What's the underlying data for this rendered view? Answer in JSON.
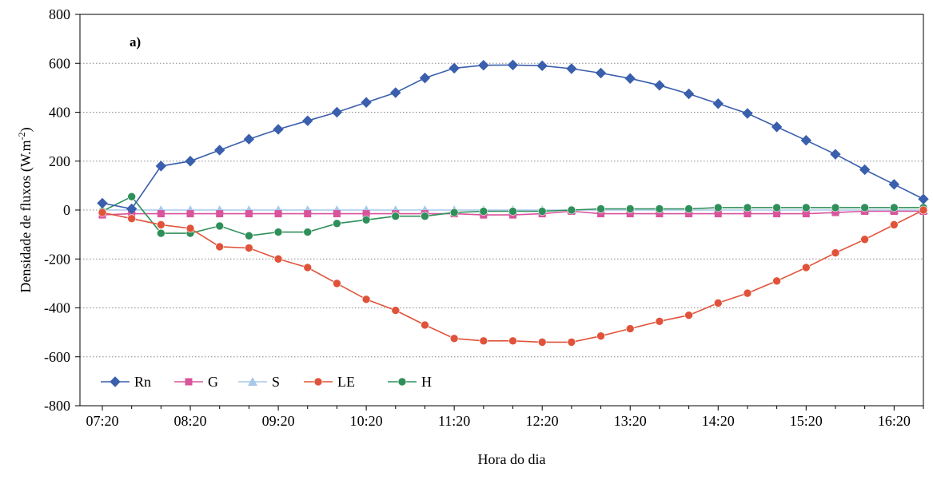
{
  "chart_data": {
    "type": "line",
    "panel_label": "a)",
    "xlabel": "Hora do dia",
    "ylabel": "Densidade de fluxos (W.m",
    "ylabel_exp": "-2",
    "ylabel_close": ")",
    "ylim": [
      -800,
      800
    ],
    "yticks": [
      -800,
      -600,
      -400,
      -200,
      0,
      200,
      400,
      600,
      800
    ],
    "x_tick_labels": [
      "07:20",
      "08:20",
      "09:20",
      "10:20",
      "11:20",
      "12:20",
      "13:20",
      "14:20",
      "15:20",
      "16:20"
    ],
    "x_tick_step_points": 3,
    "grid": "horizontal dotted",
    "legend_placement": "bottom-left",
    "x": [
      "07:20",
      "07:40",
      "08:00",
      "08:20",
      "08:40",
      "09:00",
      "09:20",
      "09:40",
      "10:00",
      "10:20",
      "10:40",
      "11:00",
      "11:20",
      "11:40",
      "12:00",
      "12:20",
      "12:40",
      "13:00",
      "13:20",
      "13:40",
      "14:00",
      "14:20",
      "14:40",
      "15:00",
      "15:20",
      "15:40",
      "16:00",
      "16:20",
      "16:40"
    ],
    "series": [
      {
        "name": "Rn",
        "color": "#3a5fad",
        "marker": "diamond",
        "values": [
          28,
          5,
          180,
          200,
          245,
          290,
          330,
          365,
          400,
          440,
          480,
          540,
          580,
          592,
          593,
          590,
          578,
          560,
          538,
          510,
          475,
          435,
          395,
          340,
          285,
          228,
          165,
          105,
          45
        ]
      },
      {
        "name": "G",
        "color": "#d9549a",
        "marker": "square",
        "values": [
          -20,
          -15,
          -15,
          -15,
          -15,
          -15,
          -15,
          -15,
          -15,
          -15,
          -15,
          -15,
          -15,
          -20,
          -20,
          -15,
          -5,
          -15,
          -15,
          -15,
          -15,
          -15,
          -15,
          -15,
          -15,
          -10,
          -5,
          -5,
          -5
        ]
      },
      {
        "name": "S",
        "color": "#a8c8ea",
        "marker": "triangle",
        "values": [
          0,
          0,
          0,
          0,
          0,
          0,
          0,
          0,
          0,
          0,
          0,
          0,
          0,
          0,
          0,
          0,
          0,
          0,
          0,
          0,
          0,
          0,
          0,
          0,
          0,
          0,
          0,
          0,
          0
        ]
      },
      {
        "name": "LE",
        "color": "#e0533a",
        "marker": "circle",
        "values": [
          -10,
          -35,
          -60,
          -75,
          -150,
          -155,
          -200,
          -235,
          -300,
          -365,
          -410,
          -470,
          -525,
          -535,
          -535,
          -540,
          -540,
          -515,
          -485,
          -455,
          -430,
          -380,
          -340,
          -290,
          -235,
          -175,
          -120,
          -60,
          0
        ]
      },
      {
        "name": "H",
        "color": "#2f8f5a",
        "marker": "circle",
        "values": [
          -5,
          55,
          -95,
          -95,
          -65,
          -105,
          -90,
          -90,
          -55,
          -40,
          -25,
          -25,
          -10,
          -5,
          -5,
          -5,
          0,
          5,
          5,
          5,
          5,
          10,
          10,
          10,
          10,
          10,
          10,
          10,
          10
        ]
      }
    ]
  }
}
